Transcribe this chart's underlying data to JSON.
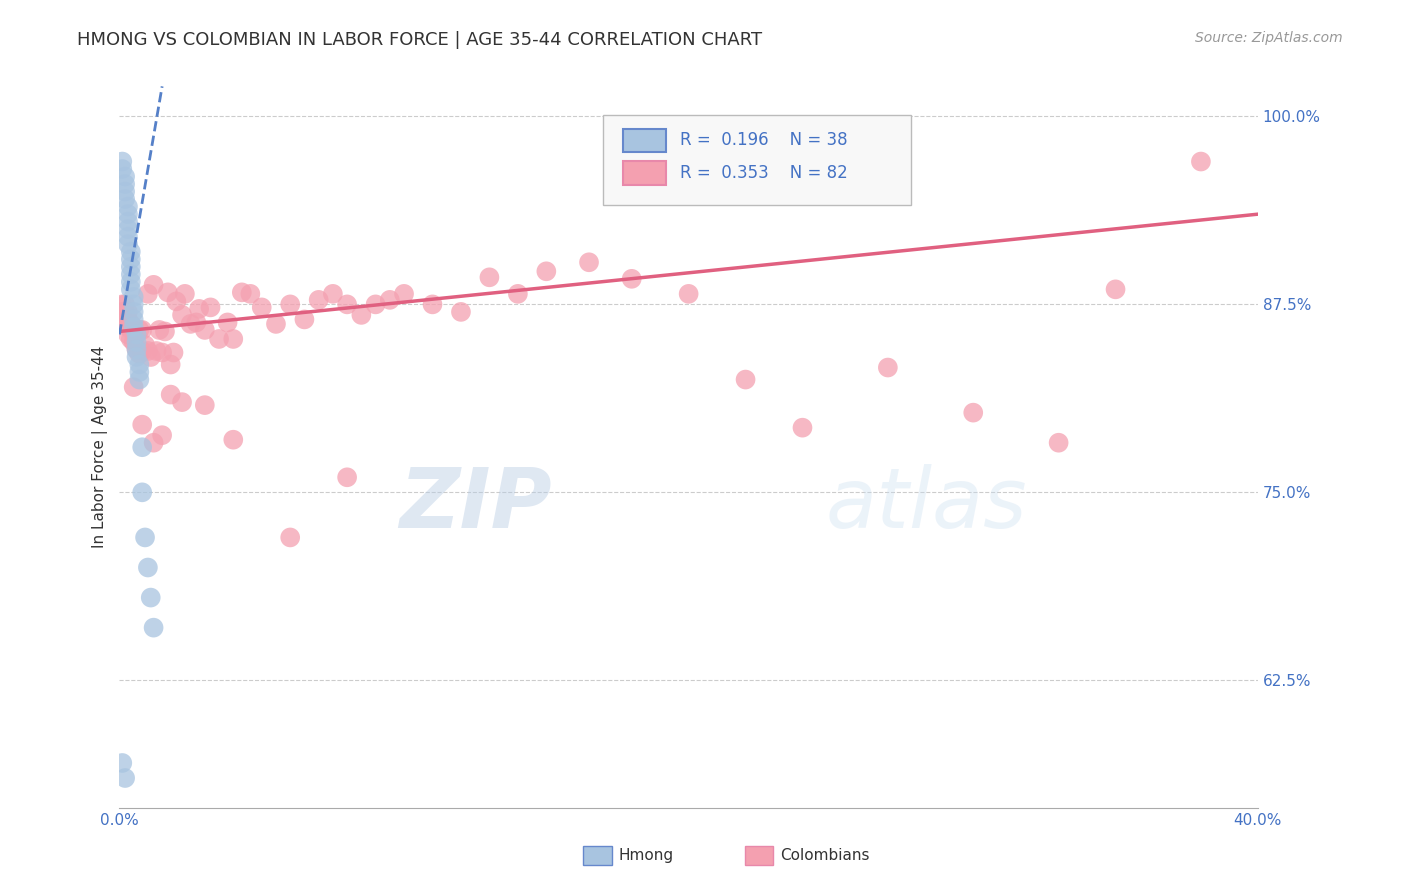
{
  "title": "HMONG VS COLOMBIAN IN LABOR FORCE | AGE 35-44 CORRELATION CHART",
  "source": "Source: ZipAtlas.com",
  "ylabel": "In Labor Force | Age 35-44",
  "xlim": [
    0.0,
    0.4
  ],
  "ylim": [
    0.54,
    1.02
  ],
  "ytick_values": [
    0.625,
    0.75,
    0.875,
    1.0
  ],
  "ytick_labels": [
    "62.5%",
    "75.0%",
    "87.5%",
    "100.0%"
  ],
  "hmong_R": "0.196",
  "hmong_N": "38",
  "colombian_R": "0.353",
  "colombian_N": "82",
  "hmong_color": "#a8c4e0",
  "colombian_color": "#f4a0b0",
  "hmong_line_color": "#5580c8",
  "colombian_line_color": "#e06080",
  "background_color": "#ffffff",
  "grid_color": "#cccccc",
  "watermark_color": "#c8d8e8",
  "hmong_x": [
    0.001,
    0.001,
    0.002,
    0.002,
    0.002,
    0.002,
    0.003,
    0.003,
    0.003,
    0.003,
    0.003,
    0.003,
    0.004,
    0.004,
    0.004,
    0.004,
    0.004,
    0.004,
    0.005,
    0.005,
    0.005,
    0.005,
    0.005,
    0.006,
    0.006,
    0.006,
    0.006,
    0.007,
    0.007,
    0.007,
    0.008,
    0.008,
    0.009,
    0.01,
    0.011,
    0.012,
    0.001,
    0.002
  ],
  "hmong_y": [
    0.97,
    0.965,
    0.96,
    0.955,
    0.95,
    0.945,
    0.94,
    0.935,
    0.93,
    0.925,
    0.92,
    0.915,
    0.91,
    0.905,
    0.9,
    0.895,
    0.89,
    0.885,
    0.88,
    0.875,
    0.87,
    0.865,
    0.86,
    0.855,
    0.85,
    0.845,
    0.84,
    0.835,
    0.83,
    0.825,
    0.78,
    0.75,
    0.72,
    0.7,
    0.68,
    0.66,
    0.57,
    0.56
  ],
  "colombian_x": [
    0.001,
    0.001,
    0.001,
    0.002,
    0.002,
    0.002,
    0.003,
    0.003,
    0.003,
    0.003,
    0.004,
    0.004,
    0.004,
    0.005,
    0.005,
    0.006,
    0.006,
    0.007,
    0.007,
    0.008,
    0.008,
    0.009,
    0.01,
    0.01,
    0.011,
    0.012,
    0.013,
    0.014,
    0.015,
    0.016,
    0.017,
    0.018,
    0.019,
    0.02,
    0.022,
    0.023,
    0.025,
    0.027,
    0.028,
    0.03,
    0.032,
    0.035,
    0.038,
    0.04,
    0.043,
    0.046,
    0.05,
    0.055,
    0.06,
    0.065,
    0.07,
    0.075,
    0.08,
    0.085,
    0.09,
    0.095,
    0.1,
    0.11,
    0.12,
    0.13,
    0.14,
    0.15,
    0.165,
    0.18,
    0.2,
    0.22,
    0.24,
    0.27,
    0.3,
    0.33,
    0.005,
    0.008,
    0.012,
    0.015,
    0.018,
    0.022,
    0.03,
    0.04,
    0.06,
    0.08,
    0.38,
    0.35
  ],
  "colombian_y": [
    0.875,
    0.87,
    0.865,
    0.875,
    0.87,
    0.865,
    0.87,
    0.865,
    0.86,
    0.855,
    0.862,
    0.858,
    0.852,
    0.858,
    0.85,
    0.855,
    0.845,
    0.858,
    0.842,
    0.858,
    0.844,
    0.848,
    0.844,
    0.882,
    0.84,
    0.888,
    0.844,
    0.858,
    0.843,
    0.857,
    0.883,
    0.835,
    0.843,
    0.877,
    0.868,
    0.882,
    0.862,
    0.863,
    0.872,
    0.858,
    0.873,
    0.852,
    0.863,
    0.852,
    0.883,
    0.882,
    0.873,
    0.862,
    0.875,
    0.865,
    0.878,
    0.882,
    0.875,
    0.868,
    0.875,
    0.878,
    0.882,
    0.875,
    0.87,
    0.893,
    0.882,
    0.897,
    0.903,
    0.892,
    0.882,
    0.825,
    0.793,
    0.833,
    0.803,
    0.783,
    0.82,
    0.795,
    0.783,
    0.788,
    0.815,
    0.81,
    0.808,
    0.785,
    0.72,
    0.76,
    0.97,
    0.885
  ],
  "tick_label_color": "#4472c4",
  "axis_color": "#333333",
  "title_fontsize": 13,
  "label_fontsize": 11,
  "tick_fontsize": 11,
  "source_fontsize": 10
}
